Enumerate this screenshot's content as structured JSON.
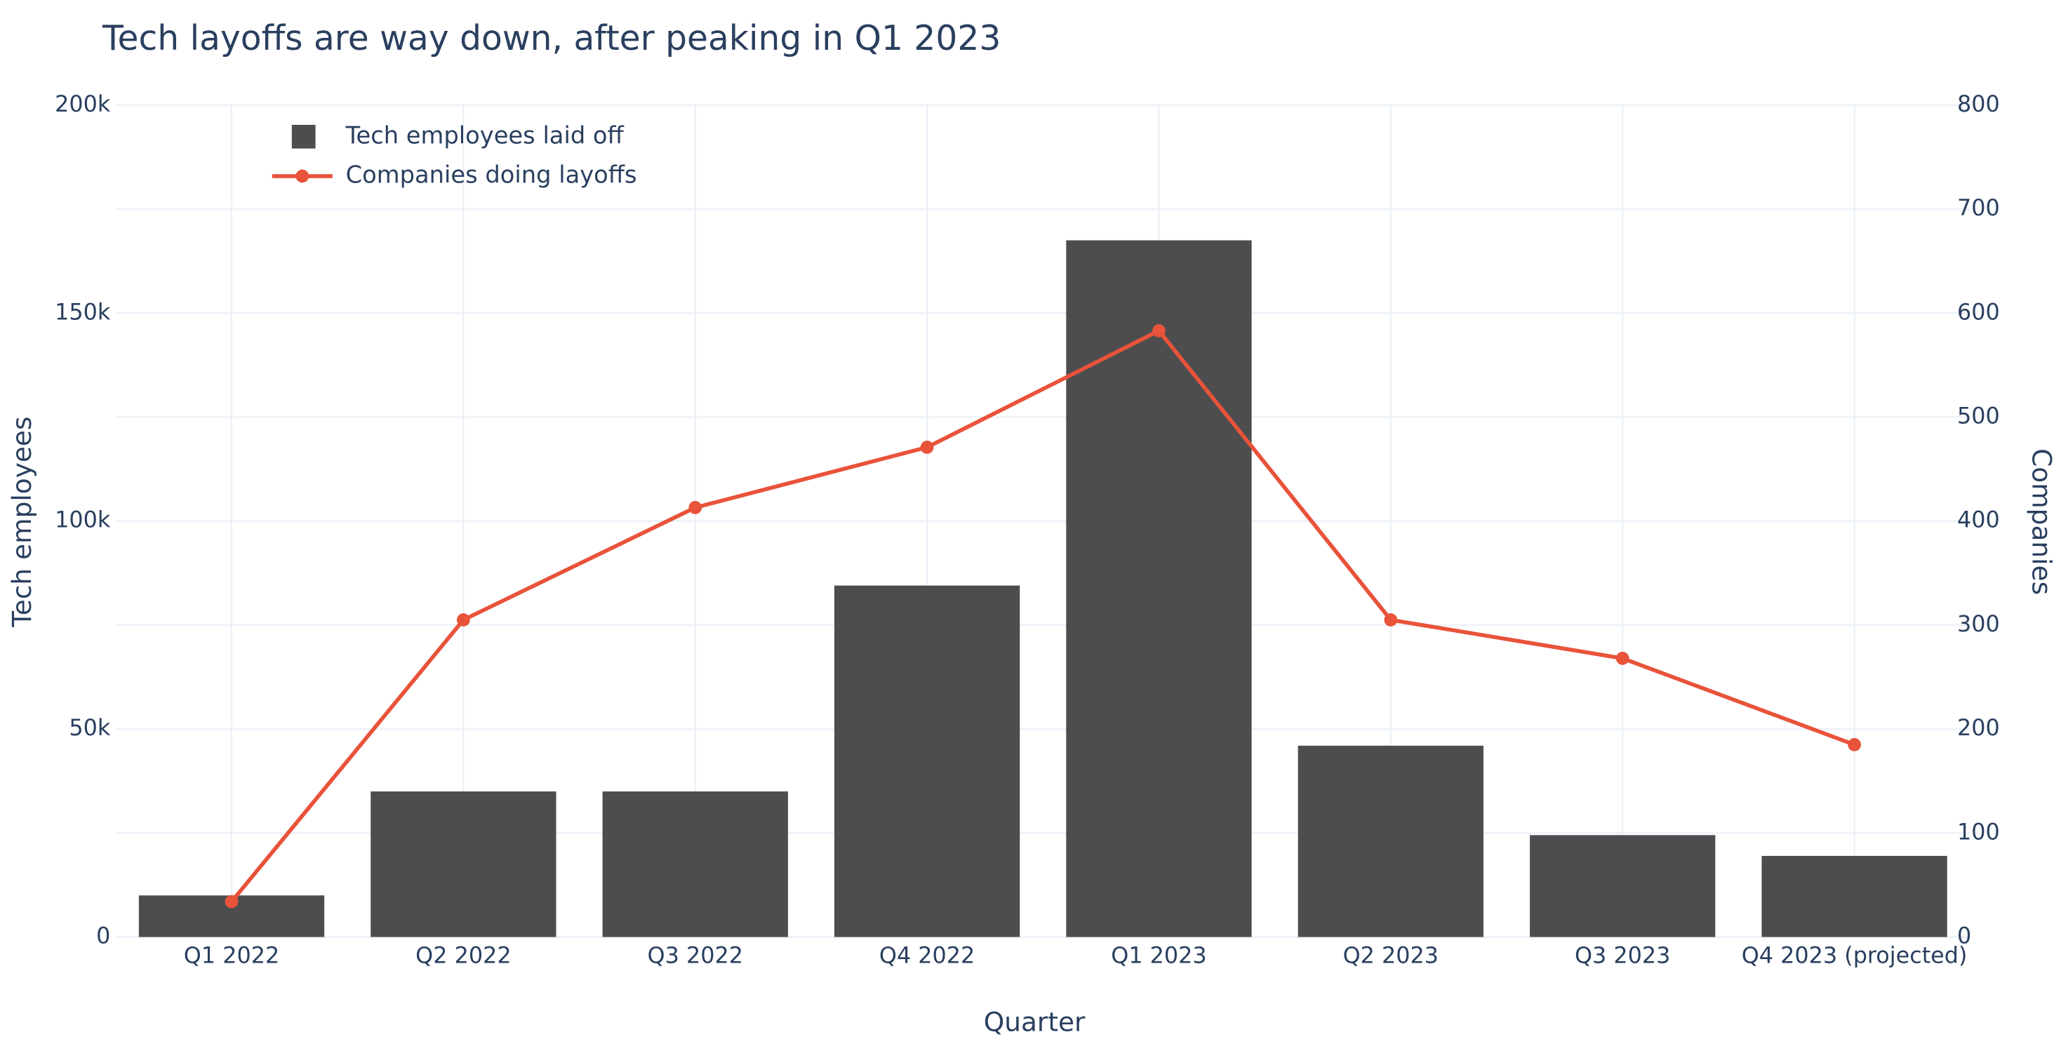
{
  "chart_data": {
    "type": "bar_line",
    "title": "Tech layoffs are way down, after peaking in Q1 2023",
    "x_label": "Quarter",
    "y_label": "Tech employees",
    "y2_label": "Companies",
    "categories": [
      "Q1 2022",
      "Q2 2022",
      "Q3 2022",
      "Q4 2022",
      "Q1 2023",
      "Q2 2023",
      "Q3 2023",
      "Q4 2023 (projected)"
    ],
    "series": [
      {
        "name": "Tech employees laid off",
        "type": "bar",
        "color": "#4d4d4f",
        "values": [
          10000,
          35000,
          35000,
          84500,
          167500,
          46000,
          24500,
          19500
        ]
      },
      {
        "name": "Companies doing layoffs",
        "type": "line",
        "axis": "y2",
        "color": "#e8533a",
        "values": [
          34,
          305,
          413,
          471,
          583,
          305,
          268,
          185
        ]
      }
    ],
    "ylim": [
      0,
      200000
    ],
    "yticks": [
      {
        "value": 0,
        "label": "0"
      },
      {
        "value": 50000,
        "label": "50k"
      },
      {
        "value": 100000,
        "label": "100k"
      },
      {
        "value": 150000,
        "label": "150k"
      },
      {
        "value": 200000,
        "label": "200k"
      }
    ],
    "y2lim": [
      0,
      800
    ],
    "y2ticks": [
      0,
      100,
      200,
      300,
      400,
      500,
      600,
      700,
      800
    ],
    "grid": true,
    "legend": "top-left"
  }
}
